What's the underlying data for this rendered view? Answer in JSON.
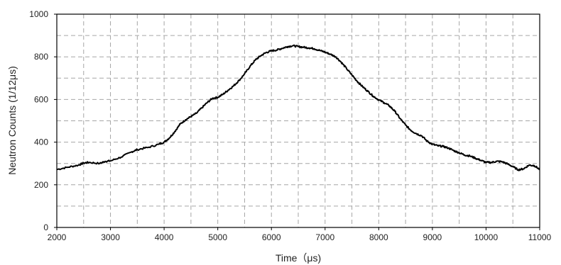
{
  "chart_data": {
    "type": "line",
    "title": "",
    "xlabel": "Time（μs)",
    "ylabel": "Neutron Counts (1/12μs)",
    "xlim": [
      2000,
      11000
    ],
    "ylim": [
      0,
      1000
    ],
    "xticks": [
      2000,
      3000,
      4000,
      5000,
      6000,
      7000,
      8000,
      9000,
      10000,
      11000
    ],
    "yticks": [
      0,
      200,
      400,
      600,
      800,
      1000
    ],
    "xgrid_step": 500,
    "ygrid_step": 100,
    "grid": true,
    "legend": "none",
    "line_color": "#000000",
    "series": [
      {
        "x": [
          2000,
          2200,
          2400,
          2500,
          2600,
          2800,
          2900,
          3000,
          3200,
          3400,
          3500,
          3700,
          3900,
          4000,
          4100,
          4200,
          4300,
          4400,
          4500,
          4600,
          4700,
          4800,
          4900,
          5000,
          5100,
          5200,
          5300,
          5400,
          5500,
          5600,
          5700,
          5800,
          5900,
          6000,
          6100,
          6200,
          6300,
          6400,
          6500,
          6600,
          6700,
          6800,
          6900,
          7000,
          7100,
          7200,
          7300,
          7400,
          7500,
          7600,
          7700,
          7800,
          7900,
          8000,
          8100,
          8200,
          8300,
          8400,
          8500,
          8600,
          8700,
          8800,
          8900,
          9000,
          9100,
          9200,
          9300,
          9400,
          9500,
          9600,
          9700,
          9800,
          9900,
          10000,
          10100,
          10200,
          10300,
          10400,
          10500,
          10600,
          10700,
          10800,
          10900,
          11000
        ],
        "y": [
          272,
          282,
          292,
          302,
          305,
          300,
          310,
          312,
          330,
          355,
          365,
          375,
          390,
          400,
          420,
          450,
          485,
          505,
          520,
          535,
          560,
          585,
          605,
          610,
          625,
          645,
          665,
          690,
          720,
          755,
          785,
          805,
          820,
          828,
          832,
          840,
          848,
          852,
          848,
          845,
          842,
          838,
          830,
          822,
          812,
          800,
          775,
          745,
          715,
          685,
          660,
          638,
          615,
          598,
          585,
          570,
          545,
          510,
          480,
          455,
          440,
          430,
          405,
          390,
          383,
          380,
          372,
          360,
          350,
          340,
          335,
          325,
          315,
          305,
          305,
          310,
          308,
          298,
          285,
          270,
          275,
          292,
          290,
          272
        ]
      }
    ]
  }
}
